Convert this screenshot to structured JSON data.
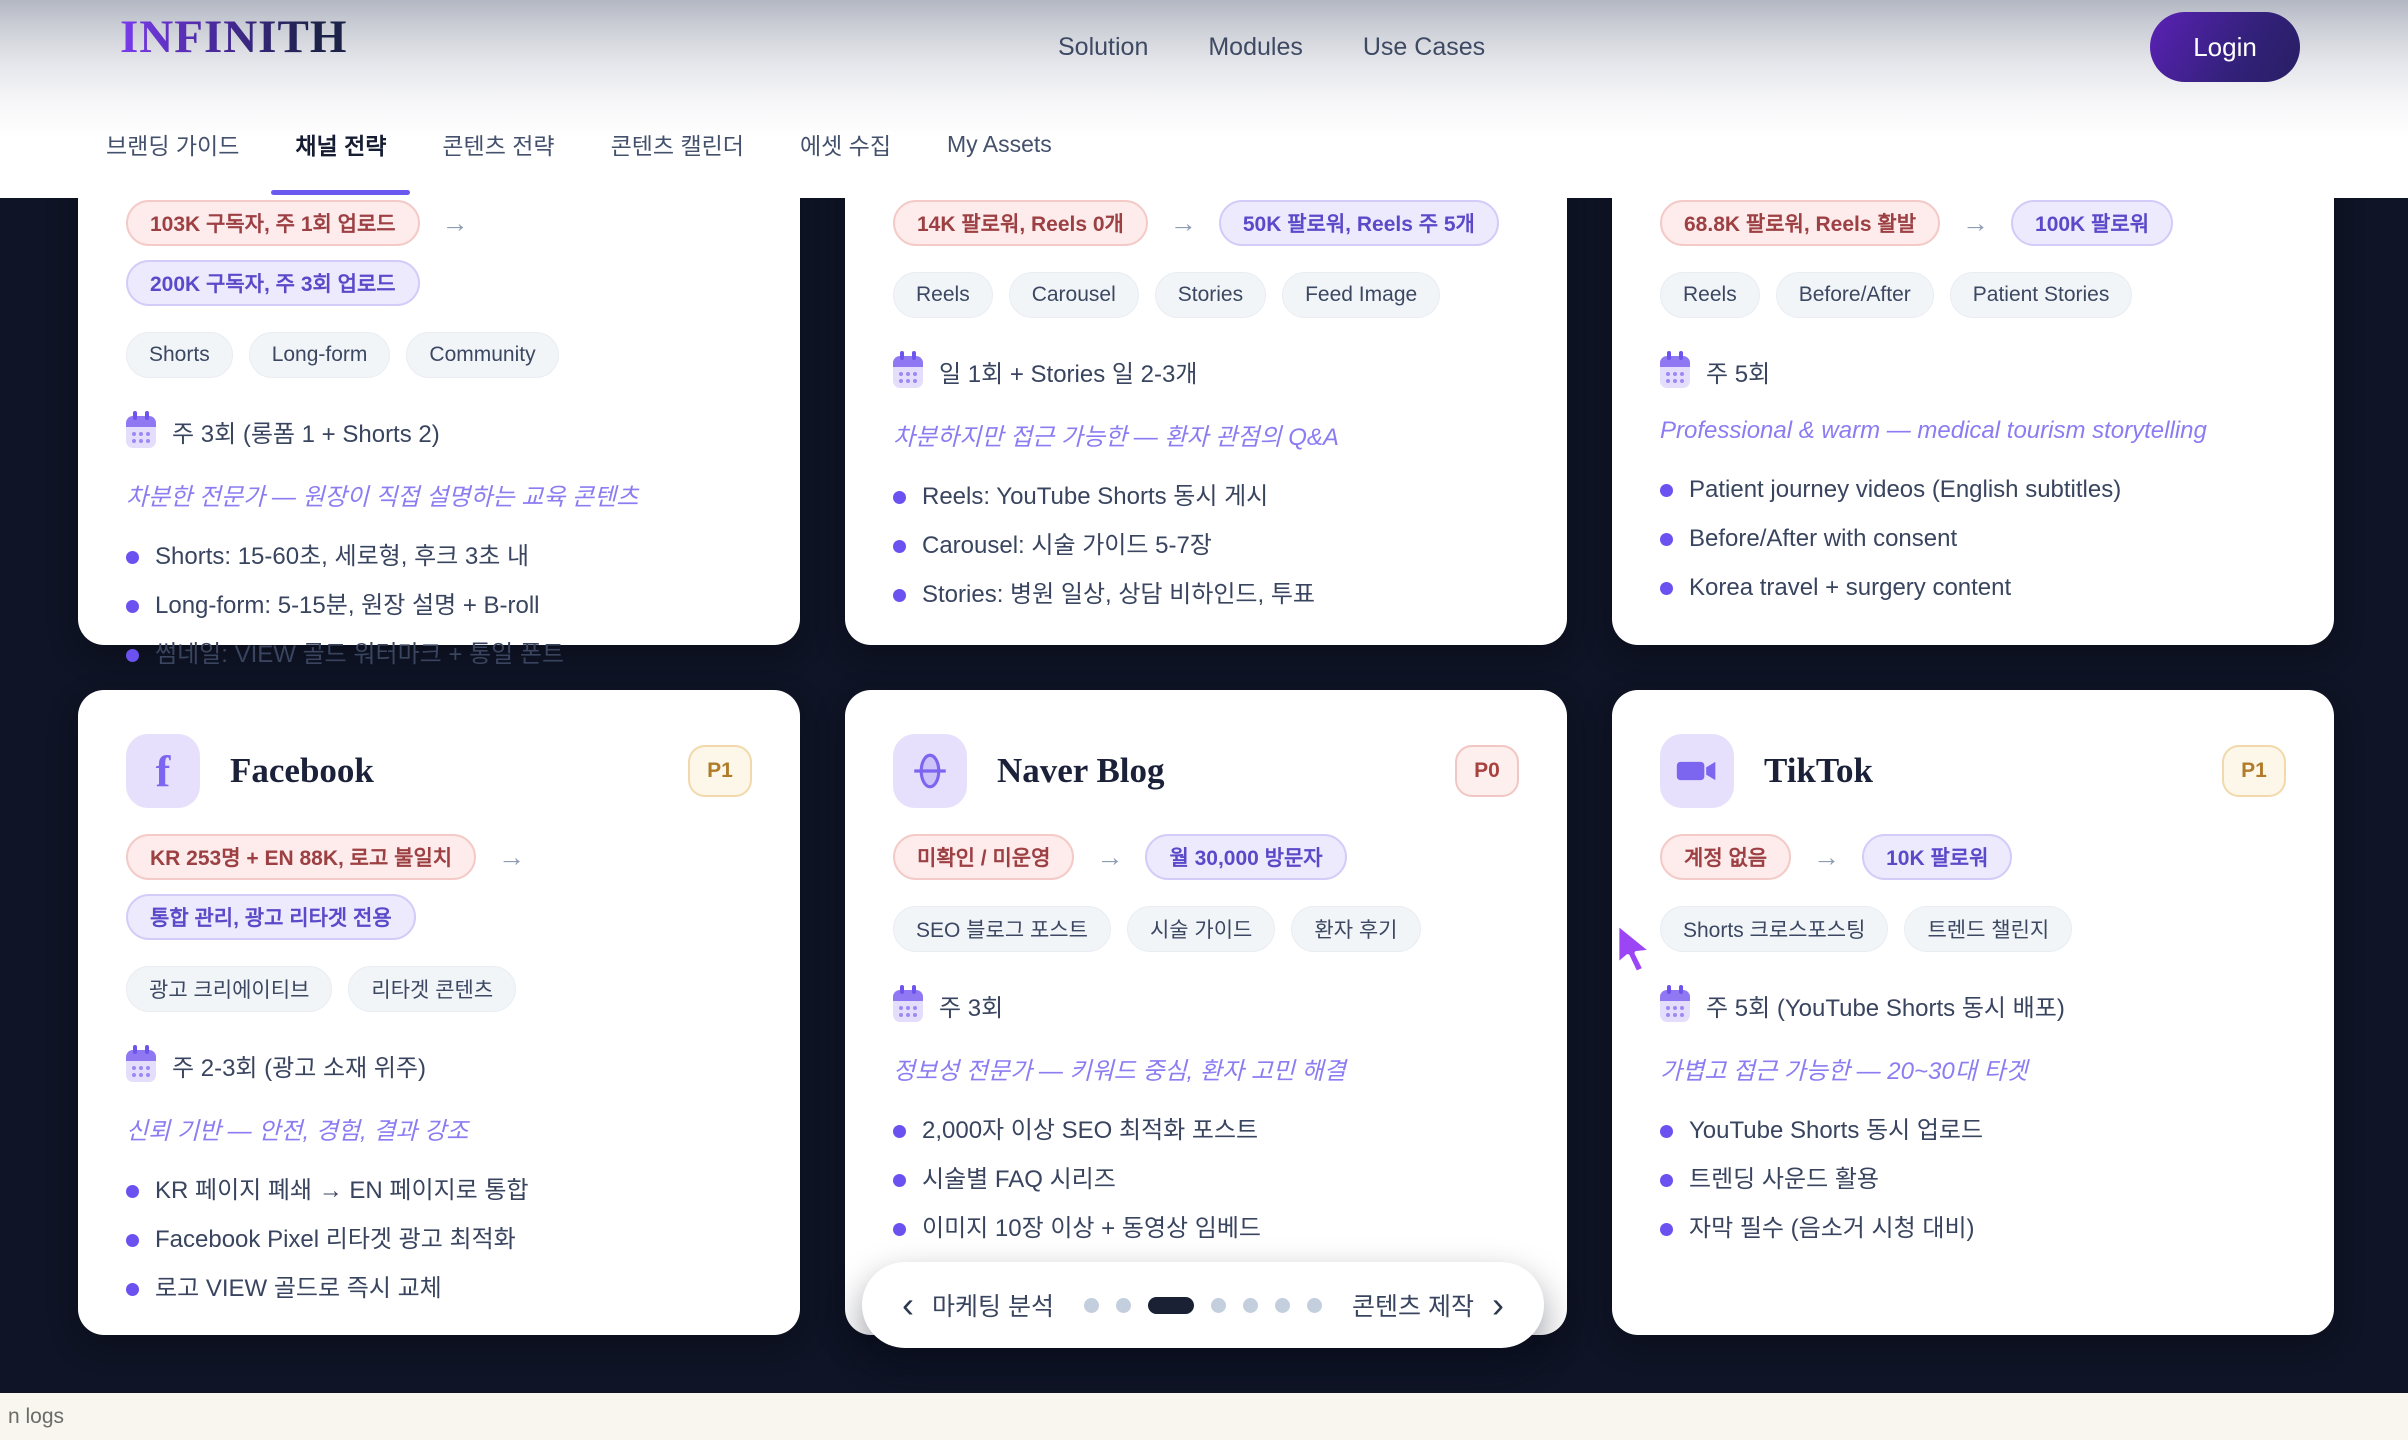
{
  "header": {
    "logo": "INFINITH",
    "nav": [
      "Solution",
      "Modules",
      "Use Cases"
    ],
    "login_label": "Login"
  },
  "tabs": [
    {
      "label": "브랜딩 가이드",
      "active": false
    },
    {
      "label": "채널 전략",
      "active": true
    },
    {
      "label": "콘텐츠 전략",
      "active": false
    },
    {
      "label": "콘텐츠 캘린더",
      "active": false
    },
    {
      "label": "에셋 수집",
      "active": false
    },
    {
      "label": "My Assets",
      "active": false
    }
  ],
  "top_cards": [
    {
      "current": "103K 구독자, 주 1회 업로드",
      "target": "200K 구독자, 주 3회 업로드",
      "tags": [
        "Shorts",
        "Long-form",
        "Community"
      ],
      "frequency": "주 3회 (롱폼 1 + Shorts 2)",
      "tone": "차분한 전문가 — 원장이 직접 설명하는 교육 콘텐츠",
      "bullets": [
        "Shorts: 15-60초, 세로형, 후크 3초 내",
        "Long-form: 5-15분, 원장 설명 + B-roll",
        "썸네일: VIEW 골드 워터마크 + 통일 폰트"
      ]
    },
    {
      "current": "14K 팔로워, Reels 0개",
      "target": "50K 팔로워, Reels 주 5개",
      "tags": [
        "Reels",
        "Carousel",
        "Stories",
        "Feed Image"
      ],
      "frequency": "일 1회 + Stories 일 2-3개",
      "tone": "차분하지만 접근 가능한 — 환자 관점의 Q&A",
      "bullets": [
        "Reels: YouTube Shorts 동시 게시",
        "Carousel: 시술 가이드 5-7장",
        "Stories: 병원 일상, 상담 비하인드, 투표"
      ]
    },
    {
      "current": "68.8K 팔로워, Reels 활발",
      "target": "100K 팔로워",
      "tags": [
        "Reels",
        "Before/After",
        "Patient Stories"
      ],
      "frequency": "주 5회",
      "tone": "Professional & warm — medical tourism storytelling",
      "bullets": [
        "Patient journey videos (English subtitles)",
        "Before/After with consent",
        "Korea travel + surgery content"
      ]
    }
  ],
  "bottom_cards": [
    {
      "title": "Facebook",
      "icon": "facebook-icon",
      "priority": "P1",
      "priority_variant": "amber",
      "current": "KR 253명 + EN 88K, 로고 불일치",
      "target": "통합 관리, 광고 리타겟 전용",
      "tags": [
        "광고 크리에이티브",
        "리타겟 콘텐츠"
      ],
      "frequency": "주 2-3회 (광고 소재 위주)",
      "tone": "신뢰 기반 — 안전, 경험, 결과 강조",
      "bullets": [
        "KR 페이지 폐쇄 → EN 페이지로 통합",
        "Facebook Pixel 리타겟 광고 최적화",
        "로고 VIEW 골드로 즉시 교체"
      ]
    },
    {
      "title": "Naver Blog",
      "icon": "globe-icon",
      "priority": "P0",
      "priority_variant": "red",
      "current": "미확인 / 미운영",
      "target": "월 30,000 방문자",
      "tags": [
        "SEO 블로그 포스트",
        "시술 가이드",
        "환자 후기"
      ],
      "frequency": "주 3회",
      "tone": "정보성 전문가 — 키워드 중심, 환자 고민 해결",
      "bullets": [
        "2,000자 이상 SEO 최적화 포스트",
        "시술별 FAQ 시리즈",
        "이미지 10장 이상 + 동영상 임베드"
      ]
    },
    {
      "title": "TikTok",
      "icon": "video-camera-icon",
      "priority": "P1",
      "priority_variant": "amber",
      "current": "계정 없음",
      "target": "10K 팔로워",
      "tags": [
        "Shorts 크로스포스팅",
        "트렌드 챌린지"
      ],
      "frequency": "주 5회 (YouTube Shorts 동시 배포)",
      "tone": "가볍고 접근 가능한 — 20~30대 타겟",
      "bullets": [
        "YouTube Shorts 동시 업로드",
        "트렌딩 사운드 활용",
        "자막 필수 (음소거 시청 대비)"
      ]
    }
  ],
  "carousel": {
    "prev_label": "마케팅 분석",
    "next_label": "콘텐츠 제작",
    "dots_total": 7,
    "active_dot_index": 2
  },
  "status_bar": {
    "text": "n logs"
  },
  "colors": {
    "accent_purple": "#6c59f0",
    "badge_pink_text": "#9c4043",
    "badge_purple_text": "#5a49c8",
    "priority_amber": "#b07c2a",
    "priority_red": "#a8423f",
    "page_bg": "#0f1426"
  }
}
